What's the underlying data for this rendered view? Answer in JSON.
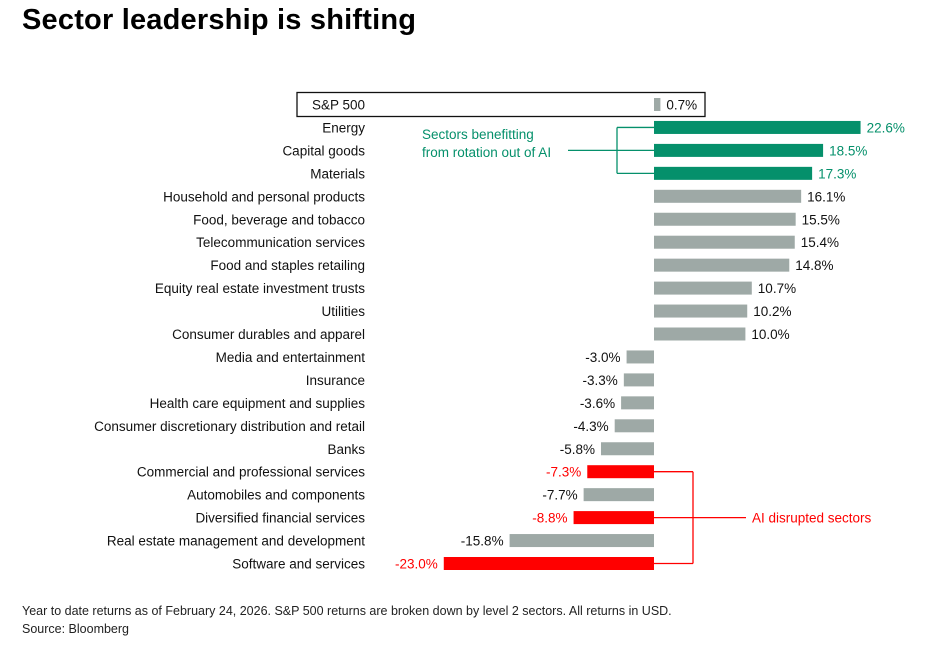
{
  "chart_data": {
    "type": "bar",
    "orientation": "horizontal",
    "title": "Sector leadership is shifting",
    "xlabel": "",
    "ylabel": "",
    "unit": "%",
    "xlim": [
      -23.0,
      22.6
    ],
    "grid": false,
    "legend": "none",
    "categories": [
      "S&P 500",
      "Energy",
      "Capital goods",
      "Materials",
      "Household and personal products",
      "Food, beverage and tobacco",
      "Telecommunication services",
      "Food and staples retailing",
      "Equity real estate investment trusts",
      "Utilities",
      "Consumer durables and apparel",
      "Media and entertainment",
      "Insurance",
      "Health care equipment and supplies",
      "Consumer discretionary distribution and retail",
      "Banks",
      "Commercial and professional services",
      "Automobiles and components",
      "Diversified financial services",
      "Real estate management and development",
      "Software and services"
    ],
    "values": [
      0.7,
      22.6,
      18.5,
      17.3,
      16.1,
      15.5,
      15.4,
      14.8,
      10.7,
      10.2,
      10.0,
      -3.0,
      -3.3,
      -3.6,
      -4.3,
      -5.8,
      -7.3,
      -7.7,
      -8.8,
      -15.8,
      -23.0
    ],
    "value_labels": [
      "0.7%",
      "22.6%",
      "18.5%",
      "17.3%",
      "16.1%",
      "15.5%",
      "15.4%",
      "14.8%",
      "10.7%",
      "10.2%",
      "10.0%",
      "-3.0%",
      "-3.3%",
      "-3.6%",
      "-4.3%",
      "-5.8%",
      "-7.3%",
      "-7.7%",
      "-8.8%",
      "-15.8%",
      "-23.0%"
    ],
    "groups": [
      "benchmark",
      "benefit",
      "benefit",
      "benefit",
      "neutral",
      "neutral",
      "neutral",
      "neutral",
      "neutral",
      "neutral",
      "neutral",
      "neutral",
      "neutral",
      "neutral",
      "neutral",
      "neutral",
      "disrupted",
      "neutral",
      "disrupted",
      "neutral",
      "disrupted"
    ],
    "annotations": [
      {
        "text_lines": [
          "Sectors benefitting",
          "from rotation out of AI"
        ],
        "group": "benefit"
      },
      {
        "text_lines": [
          "AI disrupted sectors"
        ],
        "group": "disrupted"
      }
    ]
  },
  "colors": {
    "neutral": "#9ea9a6",
    "benefit": "#05906b",
    "disrupted": "#ff0000",
    "benchmark": "#9ea9a6",
    "text": "#111111"
  },
  "footnote": {
    "line1": "Year to date returns as of February 24, 2026. S&P 500 returns are broken down by level 2 sectors. All returns in USD.",
    "line2": "Source: Bloomberg"
  }
}
